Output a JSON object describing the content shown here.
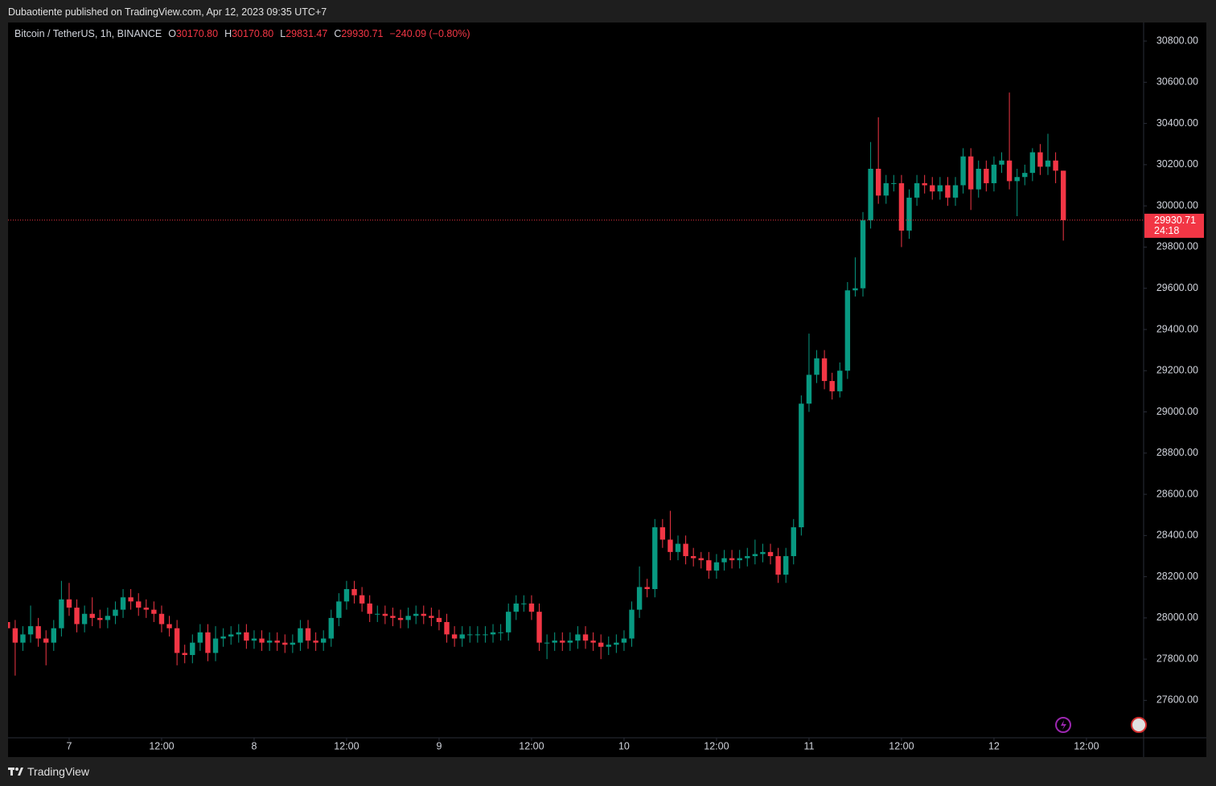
{
  "header": {
    "text": "Dubaotiente published on TradingView.com, Apr 12, 2023 09:35 UTC+7"
  },
  "chart_data": {
    "type": "candlestick",
    "legend": {
      "symbol": "Bitcoin / TetherUS, 1h, BINANCE",
      "o_key": "O",
      "o": "30170.80",
      "h_key": "H",
      "h": "30170.80",
      "l_key": "L",
      "l": "29831.47",
      "c_key": "C",
      "c": "29930.71",
      "change": "−240.09 (−0.80%)"
    },
    "last_price_label": "29930.71",
    "countdown": "24:18",
    "up_color": "#089981",
    "down_color": "#f23645",
    "categories": [
      null,
      null,
      null,
      null,
      null,
      null,
      null,
      null,
      "7",
      null,
      null,
      null,
      null,
      null,
      null,
      null,
      null,
      null,
      null,
      null,
      "12:00",
      null,
      null,
      null,
      null,
      null,
      null,
      null,
      null,
      null,
      null,
      null,
      "8",
      null,
      null,
      null,
      null,
      null,
      null,
      null,
      null,
      null,
      null,
      null,
      "12:00",
      null,
      null,
      null,
      null,
      null,
      null,
      null,
      null,
      null,
      null,
      null,
      "9",
      null,
      null,
      null,
      null,
      null,
      null,
      null,
      null,
      null,
      null,
      null,
      "12:00",
      null,
      null,
      null,
      null,
      null,
      null,
      null,
      null,
      null,
      null,
      null,
      "10",
      null,
      null,
      null,
      null,
      null,
      null,
      null,
      null,
      null,
      null,
      null,
      "12:00",
      null,
      null,
      null,
      null,
      null,
      null,
      null,
      null,
      null,
      null,
      null,
      "11",
      null,
      null,
      null,
      null,
      null,
      null,
      null,
      null,
      null,
      null,
      null,
      "12:00",
      null,
      null,
      null,
      null,
      null,
      null,
      null,
      null,
      null,
      null,
      null,
      "12",
      null,
      null,
      null,
      null,
      null,
      null,
      null,
      null,
      null
    ],
    "xticks": [
      {
        "value": 8,
        "label": "7"
      },
      {
        "value": 20,
        "label": "12:00"
      },
      {
        "value": 32,
        "label": "8"
      },
      {
        "value": 44,
        "label": "12:00"
      },
      {
        "value": 56,
        "label": "9"
      },
      {
        "value": 68,
        "label": "12:00"
      },
      {
        "value": 80,
        "label": "10"
      },
      {
        "value": 92,
        "label": "12:00"
      },
      {
        "value": 104,
        "label": "11"
      },
      {
        "value": 116,
        "label": "12:00"
      },
      {
        "value": 128,
        "label": "12"
      },
      {
        "value": 140,
        "label": "12:00"
      }
    ],
    "open": [
      27980,
      27950,
      27880,
      27920,
      27960,
      27900,
      27880,
      27950,
      28090,
      28050,
      27970,
      28020,
      28000,
      27990,
      28010,
      28040,
      28100,
      28080,
      28050,
      28040,
      28020,
      27970,
      27950,
      27830,
      27820,
      27880,
      27930,
      27830,
      27900,
      27910,
      27920,
      27930,
      27890,
      27900,
      27880,
      27890,
      27880,
      27870,
      27880,
      27950,
      27890,
      27880,
      27900,
      28000,
      28080,
      28140,
      28110,
      28070,
      28020,
      28020,
      28010,
      28000,
      27990,
      28010,
      28020,
      28010,
      28000,
      27980,
      27920,
      27900,
      27920,
      27920,
      27920,
      27920,
      27930,
      27930,
      28030,
      28070,
      28070,
      28030,
      27880,
      27880,
      27890,
      27880,
      27890,
      27920,
      27890,
      27880,
      27860,
      27870,
      27880,
      27900,
      28040,
      28150,
      28140,
      28440,
      28380,
      28320,
      28360,
      28300,
      28290,
      28280,
      28230,
      28270,
      28290,
      28280,
      28290,
      28300,
      28310,
      28320,
      28300,
      28210,
      28300,
      28440,
      29040,
      29180,
      29260,
      29150,
      29100,
      29200,
      29590,
      29600,
      29930,
      30180,
      30050,
      30110,
      30110,
      29880,
      30040,
      30110,
      30100,
      30070,
      30100,
      30040,
      30100,
      30240,
      30080,
      30180,
      30110,
      30200,
      30220,
      30120,
      30140,
      30160,
      30260,
      30190,
      30220,
      30170.8
    ],
    "high": [
      28020,
      27990,
      27960,
      28060,
      28000,
      27940,
      27990,
      28180,
      28170,
      28090,
      28060,
      28100,
      28040,
      28050,
      28080,
      28140,
      28140,
      28120,
      28090,
      28080,
      28060,
      28010,
      27990,
      27870,
      27920,
      27970,
      27970,
      27960,
      27950,
      27960,
      27970,
      27970,
      27940,
      27940,
      27930,
      27930,
      27920,
      27920,
      27990,
      27990,
      27930,
      27940,
      28040,
      28120,
      28180,
      28180,
      28150,
      28110,
      28060,
      28060,
      28050,
      28040,
      28050,
      28060,
      28060,
      28050,
      28040,
      28020,
      27960,
      27960,
      27960,
      27960,
      27960,
      27970,
      27970,
      28070,
      28110,
      28110,
      28110,
      28070,
      27920,
      27930,
      27930,
      27930,
      27960,
      27960,
      27930,
      27920,
      27910,
      27920,
      27940,
      28080,
      28250,
      28190,
      28480,
      28480,
      28520,
      28400,
      28400,
      28340,
      28320,
      28320,
      28310,
      28330,
      28330,
      28330,
      28340,
      28380,
      28360,
      28360,
      28340,
      28340,
      28480,
      29080,
      29380,
      29300,
      29300,
      29190,
      29240,
      29630,
      29750,
      29970,
      30310,
      30430,
      30150,
      30150,
      30150,
      30080,
      30150,
      30150,
      30140,
      30140,
      30140,
      30140,
      30280,
      30280,
      30220,
      30220,
      30240,
      30260,
      30550,
      30180,
      30200,
      30280,
      30300,
      30350,
      30260,
      30170.8
    ],
    "low": [
      27910,
      27720,
      27840,
      27880,
      27860,
      27770,
      27840,
      27910,
      28010,
      27930,
      27930,
      27960,
      27950,
      27950,
      27970,
      28000,
      28040,
      28010,
      28000,
      27980,
      27930,
      27910,
      27770,
      27780,
      27780,
      27840,
      27790,
      27790,
      27860,
      27870,
      27880,
      27850,
      27850,
      27840,
      27840,
      27840,
      27830,
      27830,
      27840,
      27850,
      27840,
      27840,
      27860,
      27960,
      28040,
      28070,
      28030,
      27980,
      27980,
      27970,
      27960,
      27950,
      27950,
      27970,
      27970,
      27960,
      27940,
      27880,
      27860,
      27860,
      27880,
      27880,
      27880,
      27880,
      27890,
      27890,
      27990,
      28030,
      27990,
      27840,
      27800,
      27840,
      27840,
      27840,
      27850,
      27850,
      27840,
      27800,
      27820,
      27830,
      27840,
      27860,
      28000,
      28100,
      28100,
      28340,
      28280,
      28280,
      28260,
      28250,
      28240,
      28190,
      28190,
      28230,
      28240,
      28240,
      28250,
      28260,
      28270,
      28260,
      28170,
      28170,
      28260,
      28400,
      29000,
      29140,
      29110,
      29060,
      29070,
      29160,
      29560,
      29560,
      29890,
      30010,
      30010,
      30070,
      29800,
      29840,
      30000,
      30060,
      30030,
      30030,
      30000,
      30000,
      30060,
      29980,
      30040,
      30070,
      30070,
      30160,
      30080,
      29950,
      30100,
      30120,
      30150,
      30150,
      30110,
      29831.47
    ],
    "close": [
      27950,
      27880,
      27920,
      27960,
      27900,
      27880,
      27950,
      28090,
      28050,
      27970,
      28020,
      28000,
      27990,
      28010,
      28040,
      28100,
      28080,
      28050,
      28040,
      28020,
      27970,
      27950,
      27830,
      27820,
      27880,
      27930,
      27830,
      27900,
      27910,
      27920,
      27930,
      27890,
      27900,
      27880,
      27890,
      27880,
      27870,
      27880,
      27950,
      27890,
      27880,
      27900,
      28000,
      28080,
      28140,
      28110,
      28070,
      28020,
      28020,
      28010,
      28000,
      27990,
      28010,
      28020,
      28010,
      28000,
      27980,
      27920,
      27900,
      27920,
      27920,
      27920,
      27920,
      27930,
      27930,
      28030,
      28070,
      28070,
      28030,
      27880,
      27880,
      27890,
      27880,
      27890,
      27920,
      27890,
      27880,
      27860,
      27870,
      27880,
      27900,
      28040,
      28150,
      28140,
      28440,
      28380,
      28320,
      28360,
      28300,
      28290,
      28280,
      28230,
      28270,
      28290,
      28280,
      28290,
      28300,
      28310,
      28320,
      28300,
      28210,
      28300,
      28440,
      29040,
      29180,
      29260,
      29150,
      29100,
      29200,
      29590,
      29600,
      29930,
      30180,
      30050,
      30110,
      30110,
      29880,
      30040,
      30110,
      30100,
      30070,
      30100,
      30040,
      30100,
      30240,
      30080,
      30180,
      30110,
      30200,
      30220,
      30120,
      30140,
      30160,
      30260,
      30190,
      30220,
      30170.8,
      29930.71
    ],
    "ylim": [
      27430,
      30890
    ],
    "yticks": [
      {
        "value": 27600,
        "label": "27600.00"
      },
      {
        "value": 27800,
        "label": "27800.00"
      },
      {
        "value": 28000,
        "label": "28000.00"
      },
      {
        "value": 28200,
        "label": "28200.00"
      },
      {
        "value": 28400,
        "label": "28400.00"
      },
      {
        "value": 28600,
        "label": "28600.00"
      },
      {
        "value": 28800,
        "label": "28800.00"
      },
      {
        "value": 29000,
        "label": "29000.00"
      },
      {
        "value": 29200,
        "label": "29200.00"
      },
      {
        "value": 29400,
        "label": "29400.00"
      },
      {
        "value": 29600,
        "label": "29600.00"
      },
      {
        "value": 29800,
        "label": "29800.00"
      },
      {
        "value": 30000,
        "label": "30000.00"
      },
      {
        "value": 30200,
        "label": "30200.00"
      },
      {
        "value": 30400,
        "label": "30400.00"
      },
      {
        "value": 30600,
        "label": "30600.00"
      },
      {
        "value": 30800,
        "label": "30800.00"
      }
    ]
  },
  "footer": {
    "brand": "TradingView"
  }
}
